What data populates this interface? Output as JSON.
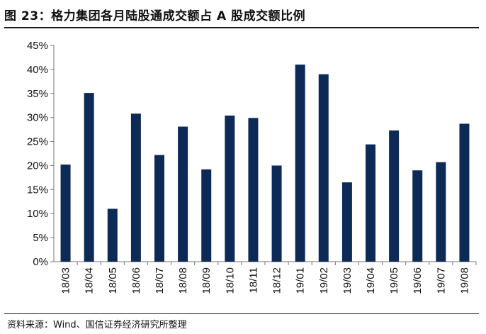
{
  "header": {
    "title": "图 23：格力集团各月陆股通成交额占 A 股成交额比例"
  },
  "footer": {
    "source": "资料来源：Wind、国信证券经济研究所整理"
  },
  "chart_data": {
    "type": "bar",
    "title": "",
    "xlabel": "",
    "ylabel": "",
    "categories": [
      "18/03",
      "18/04",
      "18/05",
      "18/06",
      "18/07",
      "18/08",
      "18/09",
      "18/10",
      "18/11",
      "18/12",
      "19/01",
      "19/02",
      "19/03",
      "19/04",
      "19/05",
      "19/06",
      "19/07",
      "19/08"
    ],
    "values": [
      20.2,
      35.1,
      11.0,
      30.8,
      22.2,
      28.1,
      19.2,
      30.4,
      29.9,
      20.0,
      41.0,
      39.0,
      16.5,
      24.4,
      27.3,
      19.0,
      20.7,
      28.7
    ],
    "ylim": [
      0,
      45
    ],
    "yticks": [
      "0%",
      "5%",
      "10%",
      "15%",
      "20%",
      "25%",
      "30%",
      "35%",
      "40%",
      "45%"
    ],
    "grid": false,
    "legend": "none",
    "bar_color": "#0d2a57"
  }
}
